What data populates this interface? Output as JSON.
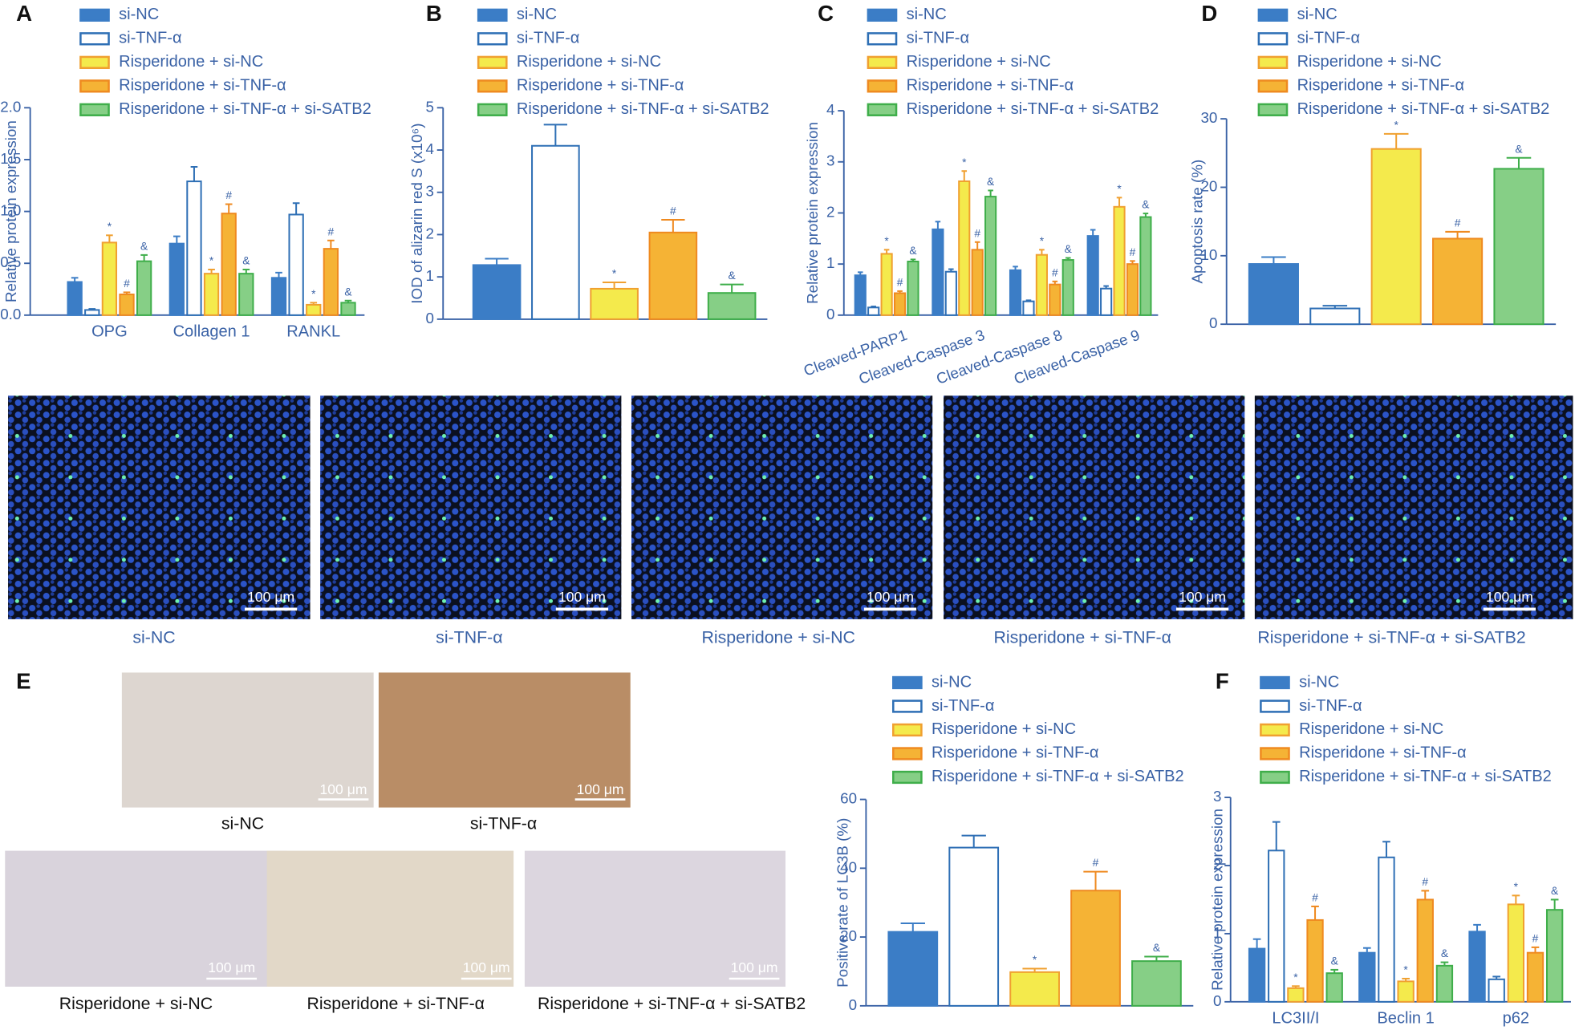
{
  "chart_data": [
    {
      "type": "bar",
      "panel": "A",
      "ylabel": "Relative protein expression",
      "categories": [
        "OPG",
        "Collagen 1",
        "RANKL"
      ],
      "ylim": [
        0,
        2
      ],
      "yticks": [
        {
          "value": 0,
          "label": "0.0"
        },
        0.5,
        {
          "value": 1,
          "label": "1.0"
        },
        1.5,
        {
          "value": 2,
          "label": "2.0"
        }
      ],
      "series": [
        {
          "name": "si-NC",
          "color": "#3b7dc6",
          "edge": "#3b7dc6",
          "values": [
            0.32,
            0.69,
            0.36
          ],
          "errors": [
            0.04,
            0.07,
            0.05
          ]
        },
        {
          "name": "si-TNF-α",
          "color": "#ffffff",
          "edge": "#2e6fb5",
          "values": [
            0.05,
            1.29,
            0.97
          ],
          "errors": [
            0.01,
            0.14,
            0.11
          ]
        },
        {
          "name": "Risperidone + si-NC",
          "color": "#f4ea4c",
          "edge": "#f0a030",
          "values": [
            0.7,
            0.4,
            0.1
          ],
          "errors": [
            0.07,
            0.04,
            0.02
          ],
          "marker": "*"
        },
        {
          "name": "Risperidone + si-TNF-α",
          "color": "#f5b335",
          "edge": "#ef8a20",
          "values": [
            0.2,
            0.98,
            0.64
          ],
          "errors": [
            0.02,
            0.09,
            0.08
          ],
          "marker": "#"
        },
        {
          "name": "Risperidone + si-TNF-α + si-SATB2",
          "color": "#86cf86",
          "edge": "#3fae4a",
          "values": [
            0.52,
            0.4,
            0.12
          ],
          "errors": [
            0.06,
            0.04,
            0.02
          ],
          "marker": "&"
        }
      ]
    },
    {
      "type": "bar",
      "panel": "B",
      "ylabel": "IOD of alizarin red S (x10⁶)",
      "ylim": [
        0,
        5
      ],
      "yticks": [
        0,
        1,
        2,
        3,
        4,
        5
      ],
      "series": [
        {
          "name": "si-NC",
          "color": "#3b7dc6",
          "edge": "#3b7dc6",
          "values": [
            1.28
          ],
          "errors": [
            0.15
          ]
        },
        {
          "name": "si-TNF-α",
          "color": "#ffffff",
          "edge": "#2e6fb5",
          "values": [
            4.1
          ],
          "errors": [
            0.5
          ]
        },
        {
          "name": "Risperidone + si-NC",
          "color": "#f4ea4c",
          "edge": "#f0a030",
          "values": [
            0.72
          ],
          "errors": [
            0.15
          ],
          "marker": "*"
        },
        {
          "name": "Risperidone + si-TNF-α",
          "color": "#f5b335",
          "edge": "#ef8a20",
          "values": [
            2.05
          ],
          "errors": [
            0.3
          ],
          "marker": "#"
        },
        {
          "name": "Risperidone + si-TNF-α + si-SATB2",
          "color": "#86cf86",
          "edge": "#3fae4a",
          "values": [
            0.62
          ],
          "errors": [
            0.2
          ],
          "marker": "&"
        }
      ]
    },
    {
      "type": "bar",
      "panel": "C",
      "ylabel": "Relative protein expression",
      "categories": [
        "Cleaved-PARP1",
        "Cleaved-Caspase 3",
        "Cleaved-Caspase 8",
        "Cleaved-Caspase 9"
      ],
      "xtick_rotation": -20,
      "ylim": [
        0,
        4
      ],
      "yticks": [
        0,
        1,
        2,
        3,
        4
      ],
      "series": [
        {
          "name": "si-NC",
          "color": "#3b7dc6",
          "edge": "#3b7dc6",
          "values": [
            0.78,
            1.68,
            0.88,
            1.55
          ],
          "errors": [
            0.06,
            0.15,
            0.07,
            0.12
          ]
        },
        {
          "name": "si-TNF-α",
          "color": "#ffffff",
          "edge": "#2e6fb5",
          "values": [
            0.15,
            0.85,
            0.27,
            0.52
          ],
          "errors": [
            0.02,
            0.05,
            0.02,
            0.05
          ]
        },
        {
          "name": "Risperidone + si-NC",
          "color": "#f4ea4c",
          "edge": "#f0a030",
          "values": [
            1.2,
            2.62,
            1.18,
            2.12
          ],
          "errors": [
            0.08,
            0.2,
            0.1,
            0.18
          ],
          "marker": "*"
        },
        {
          "name": "Risperidone + si-TNF-α",
          "color": "#f5b335",
          "edge": "#ef8a20",
          "values": [
            0.43,
            1.28,
            0.6,
            1.0
          ],
          "errors": [
            0.04,
            0.15,
            0.06,
            0.06
          ],
          "marker": "#"
        },
        {
          "name": "Risperidone + si-TNF-α + si-SATB2",
          "color": "#86cf86",
          "edge": "#3fae4a",
          "values": [
            1.05,
            2.32,
            1.08,
            1.92
          ],
          "errors": [
            0.04,
            0.12,
            0.04,
            0.07
          ],
          "marker": "&"
        }
      ]
    },
    {
      "type": "bar",
      "panel": "D",
      "ylabel": "Apoptosis rate (%)",
      "ylim": [
        0,
        30
      ],
      "yticks": [
        0,
        10,
        20,
        30
      ],
      "series": [
        {
          "name": "si-NC",
          "color": "#3b7dc6",
          "edge": "#3b7dc6",
          "values": [
            8.8
          ],
          "errors": [
            1.0
          ]
        },
        {
          "name": "si-TNF-α",
          "color": "#ffffff",
          "edge": "#2e6fb5",
          "values": [
            2.3
          ],
          "errors": [
            0.4
          ]
        },
        {
          "name": "Risperidone + si-NC",
          "color": "#f4ea4c",
          "edge": "#f0a030",
          "values": [
            25.6
          ],
          "errors": [
            2.2
          ],
          "marker": "*"
        },
        {
          "name": "Risperidone + si-TNF-α",
          "color": "#f5b335",
          "edge": "#ef8a20",
          "values": [
            12.5
          ],
          "errors": [
            1.0
          ],
          "marker": "#"
        },
        {
          "name": "Risperidone + si-TNF-α + si-SATB2",
          "color": "#86cf86",
          "edge": "#3fae4a",
          "values": [
            22.7
          ],
          "errors": [
            1.6
          ],
          "marker": "&"
        }
      ]
    },
    {
      "type": "bar",
      "panel": "E",
      "ylabel": "Positive rate of LC3B (%)",
      "ylim": [
        0,
        60
      ],
      "yticks": [
        0,
        20,
        40,
        60
      ],
      "series": [
        {
          "name": "si-NC",
          "color": "#3b7dc6",
          "edge": "#3b7dc6",
          "values": [
            21.5
          ],
          "errors": [
            2.5
          ]
        },
        {
          "name": "si-TNF-α",
          "color": "#ffffff",
          "edge": "#2e6fb5",
          "values": [
            46
          ],
          "errors": [
            3.5
          ]
        },
        {
          "name": "Risperidone + si-NC",
          "color": "#f4ea4c",
          "edge": "#f0a030",
          "values": [
            9.8
          ],
          "errors": [
            1.0
          ],
          "marker": "*"
        },
        {
          "name": "Risperidone + si-TNF-α",
          "color": "#f5b335",
          "edge": "#ef8a20",
          "values": [
            33.5
          ],
          "errors": [
            5.5
          ],
          "marker": "#"
        },
        {
          "name": "Risperidone + si-TNF-α + si-SATB2",
          "color": "#86cf86",
          "edge": "#3fae4a",
          "values": [
            13
          ],
          "errors": [
            1.3
          ],
          "marker": "&"
        }
      ]
    },
    {
      "type": "bar",
      "panel": "F",
      "ylabel": "Relative protein expression",
      "categories": [
        "LC3II/I",
        "Beclin 1",
        "p62"
      ],
      "ylim": [
        0,
        3
      ],
      "yticks": [
        0,
        1,
        2,
        3
      ],
      "series": [
        {
          "name": "si-NC",
          "color": "#3b7dc6",
          "edge": "#3b7dc6",
          "values": [
            0.78,
            0.72,
            1.03
          ],
          "errors": [
            0.14,
            0.07,
            0.1
          ]
        },
        {
          "name": "si-TNF-α",
          "color": "#ffffff",
          "edge": "#2e6fb5",
          "values": [
            2.22,
            2.12,
            0.33
          ],
          "errors": [
            0.42,
            0.23,
            0.04
          ]
        },
        {
          "name": "Risperidone + si-NC",
          "color": "#f4ea4c",
          "edge": "#f0a030",
          "values": [
            0.2,
            0.3,
            1.43
          ],
          "errors": [
            0.03,
            0.04,
            0.13
          ],
          "marker": "*"
        },
        {
          "name": "Risperidone + si-TNF-α",
          "color": "#f5b335",
          "edge": "#ef8a20",
          "values": [
            1.2,
            1.5,
            0.72
          ],
          "errors": [
            0.2,
            0.13,
            0.08
          ],
          "marker": "#"
        },
        {
          "name": "Risperidone + si-TNF-α + si-SATB2",
          "color": "#86cf86",
          "edge": "#3fae4a",
          "values": [
            0.42,
            0.53,
            1.35
          ],
          "errors": [
            0.05,
            0.05,
            0.15
          ],
          "marker": "&"
        }
      ]
    }
  ],
  "fluorescence": {
    "scale_bar": "100 μm",
    "captions": [
      "si-NC",
      "si-TNF-α",
      "Risperidone + si-NC",
      "Risperidone + si-TNF-α",
      "Risperidone + si-TNF-α + si-SATB2"
    ]
  },
  "ihc": {
    "scale_bar": "100 μm",
    "captions": [
      "si-NC",
      "si-TNF-α",
      "Risperidone + si-NC",
      "Risperidone + si-TNF-α",
      "Risperidone + si-TNF-α + si-SATB2"
    ]
  }
}
